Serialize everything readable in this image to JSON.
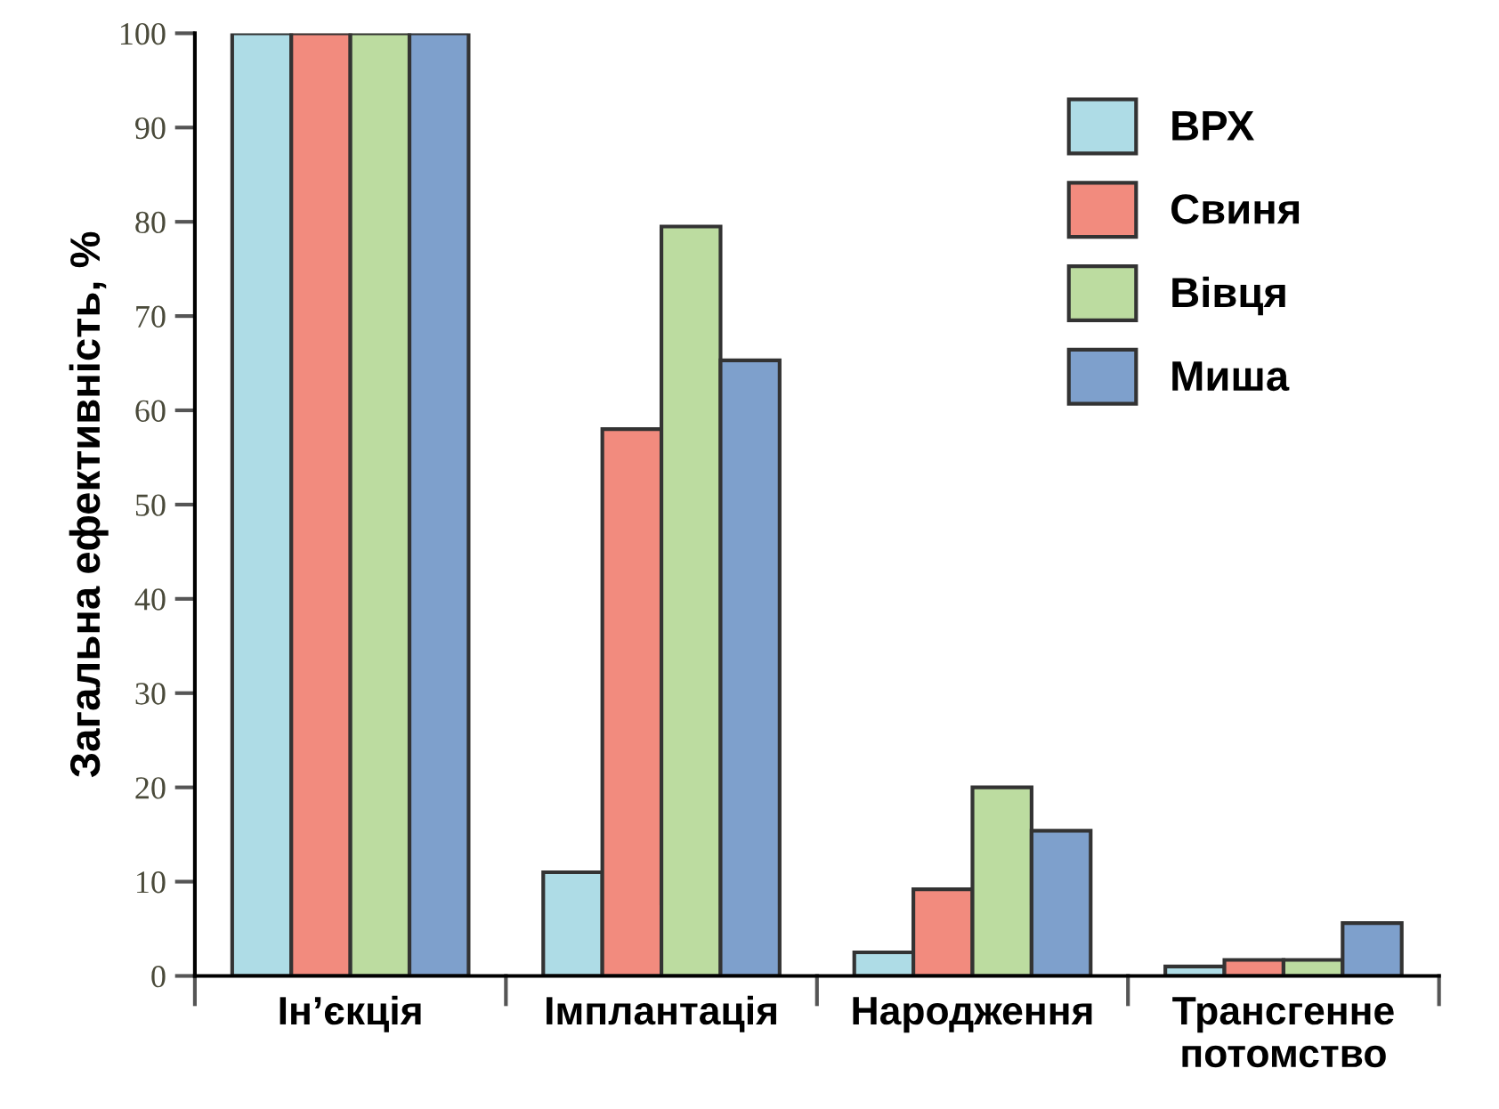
{
  "chart_data": {
    "type": "bar",
    "ylabel": "Загальна ефективність, %",
    "categories": [
      "Ін’єкція",
      "Імплантація",
      "Народження",
      "Трансгенне\nпотомство"
    ],
    "series": [
      {
        "name": "ВРХ",
        "color": "#aedce6",
        "values": [
          100,
          11,
          2.5,
          1
        ]
      },
      {
        "name": "Свиня",
        "color": "#f28b7e",
        "values": [
          100,
          58,
          9.2,
          1.7
        ]
      },
      {
        "name": "Вівця",
        "color": "#bcdca0",
        "values": [
          100,
          79.5,
          20,
          1.7
        ]
      },
      {
        "name": "Миша",
        "color": "#7ea0cc",
        "values": [
          100,
          65.3,
          15.4,
          5.6
        ]
      }
    ],
    "ylim": [
      0,
      100
    ],
    "yticks": [
      0,
      10,
      20,
      30,
      40,
      50,
      60,
      70,
      80,
      90,
      100
    ],
    "grid": false,
    "legend": "top right"
  }
}
